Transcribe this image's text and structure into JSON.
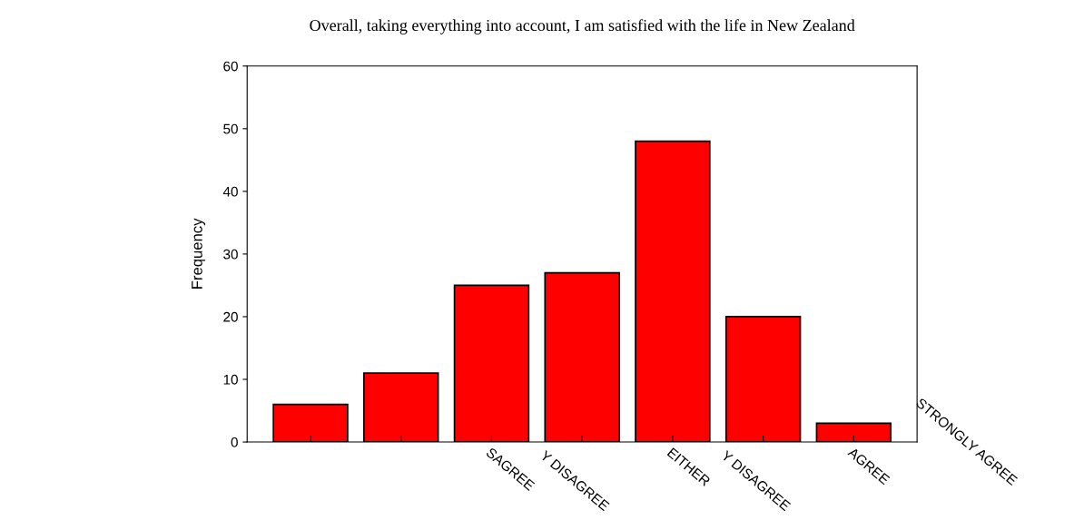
{
  "chart_data": {
    "type": "bar",
    "title": "Overall, taking everything into account, I am satisfied with the life in New Zealand",
    "ylabel": "Frequency",
    "categories": [
      null,
      null,
      "SAGREE",
      null,
      "EITHER",
      null,
      "AGREE"
    ],
    "values": [
      6,
      11,
      25,
      27,
      48,
      20,
      3
    ],
    "color": "#ff0000",
    "ylim": [
      0,
      60
    ],
    "yticks": [
      0,
      10,
      20,
      30,
      40,
      50,
      60
    ],
    "annotations": [
      "Y DISAGREE",
      "Y DISAGREE",
      "STRONGLY AGREE"
    ],
    "grid": false
  }
}
